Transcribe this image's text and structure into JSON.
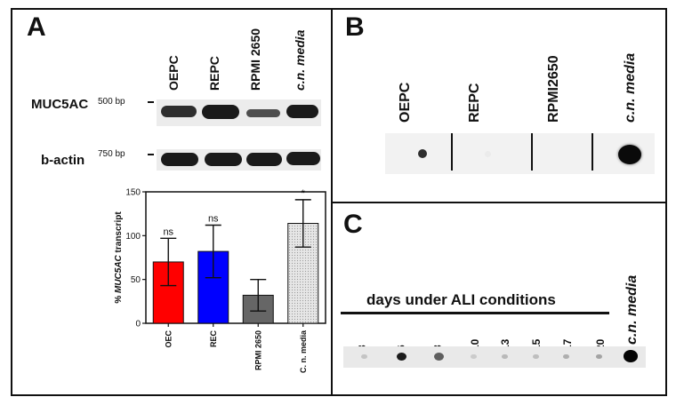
{
  "panelA": {
    "letter": "A",
    "lanes": [
      "OEPC",
      "REPC",
      "RPMI 2650",
      "c.n. media"
    ],
    "rows": [
      {
        "label": "MUC5AC",
        "bp": "500 bp"
      },
      {
        "label": "b-actin",
        "bp": "750 bp"
      }
    ],
    "chart_data": {
      "type": "bar",
      "categories": [
        "OEC",
        "REC",
        "RPMI 2650",
        "C. n. media"
      ],
      "values": [
        70,
        82,
        32,
        114
      ],
      "errors": [
        27,
        30,
        18,
        27
      ],
      "significance": [
        "ns",
        "ns",
        "",
        "*"
      ],
      "colors": [
        "#ff0000",
        "#0000ff",
        "#666666",
        "#d9d9d9"
      ],
      "ylabel_prefix": "% ",
      "ylabel_gene": "MUC5AC",
      "ylabel_suffix": " transcript",
      "yticks": [
        "0",
        "50",
        "100",
        "150"
      ],
      "ylim": [
        0,
        150
      ]
    }
  },
  "panelB": {
    "letter": "B",
    "lanes": [
      "OEPC",
      "REPC",
      "RPMI2650",
      "c.n. media"
    ],
    "spot_intensity": [
      0.85,
      0.08,
      0.0,
      1.0
    ]
  },
  "panelC": {
    "letter": "C",
    "heading": "days under ALI conditions",
    "days": [
      "3",
      "6",
      "8",
      "10",
      "13",
      "15",
      "17",
      "20"
    ],
    "media_label": "c.n. media",
    "spot_intensity": [
      0.15,
      0.9,
      0.6,
      0.12,
      0.2,
      0.18,
      0.25,
      0.3,
      1.0
    ]
  }
}
